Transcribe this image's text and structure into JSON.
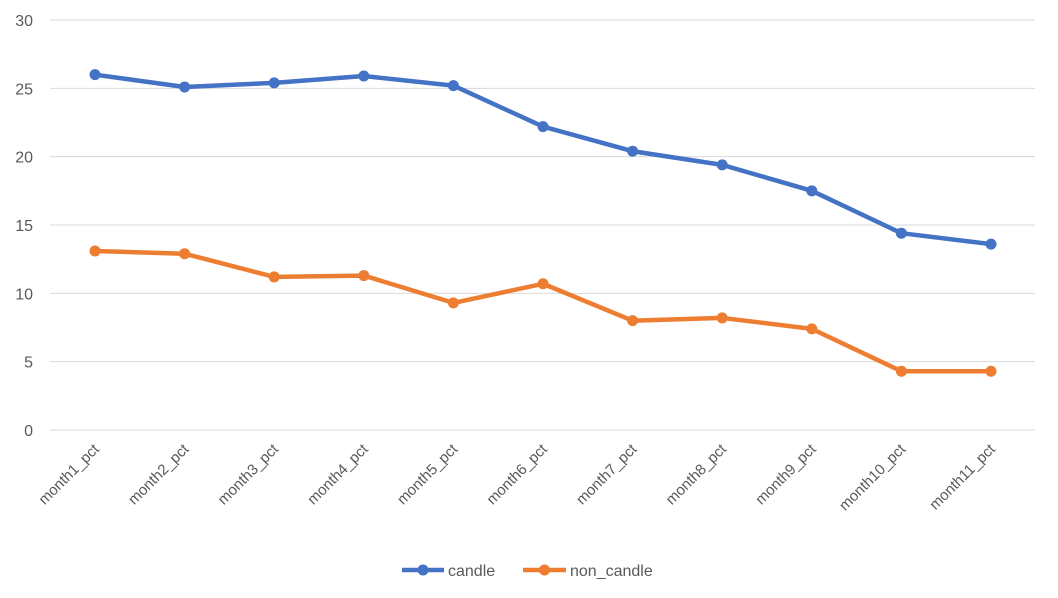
{
  "chart_data": {
    "type": "line",
    "categories": [
      "month1_pct",
      "month2_pct",
      "month3_pct",
      "month4_pct",
      "month5_pct",
      "month6_pct",
      "month7_pct",
      "month8_pct",
      "month9_pct",
      "month10_pct",
      "month11_pct"
    ],
    "series": [
      {
        "name": "candle",
        "color": "#4472C4",
        "values": [
          26.0,
          25.1,
          25.4,
          25.9,
          25.2,
          22.2,
          20.4,
          19.4,
          17.5,
          14.4,
          13.6
        ]
      },
      {
        "name": "non_candle",
        "color": "#ED7D31",
        "values": [
          13.1,
          12.9,
          11.2,
          11.3,
          9.3,
          10.7,
          8.0,
          8.2,
          7.4,
          4.3,
          4.3
        ]
      }
    ],
    "ylim": [
      0,
      30
    ],
    "yticks": [
      0,
      5,
      10,
      15,
      20,
      25,
      30
    ],
    "grid": true,
    "legend_position": "bottom"
  }
}
